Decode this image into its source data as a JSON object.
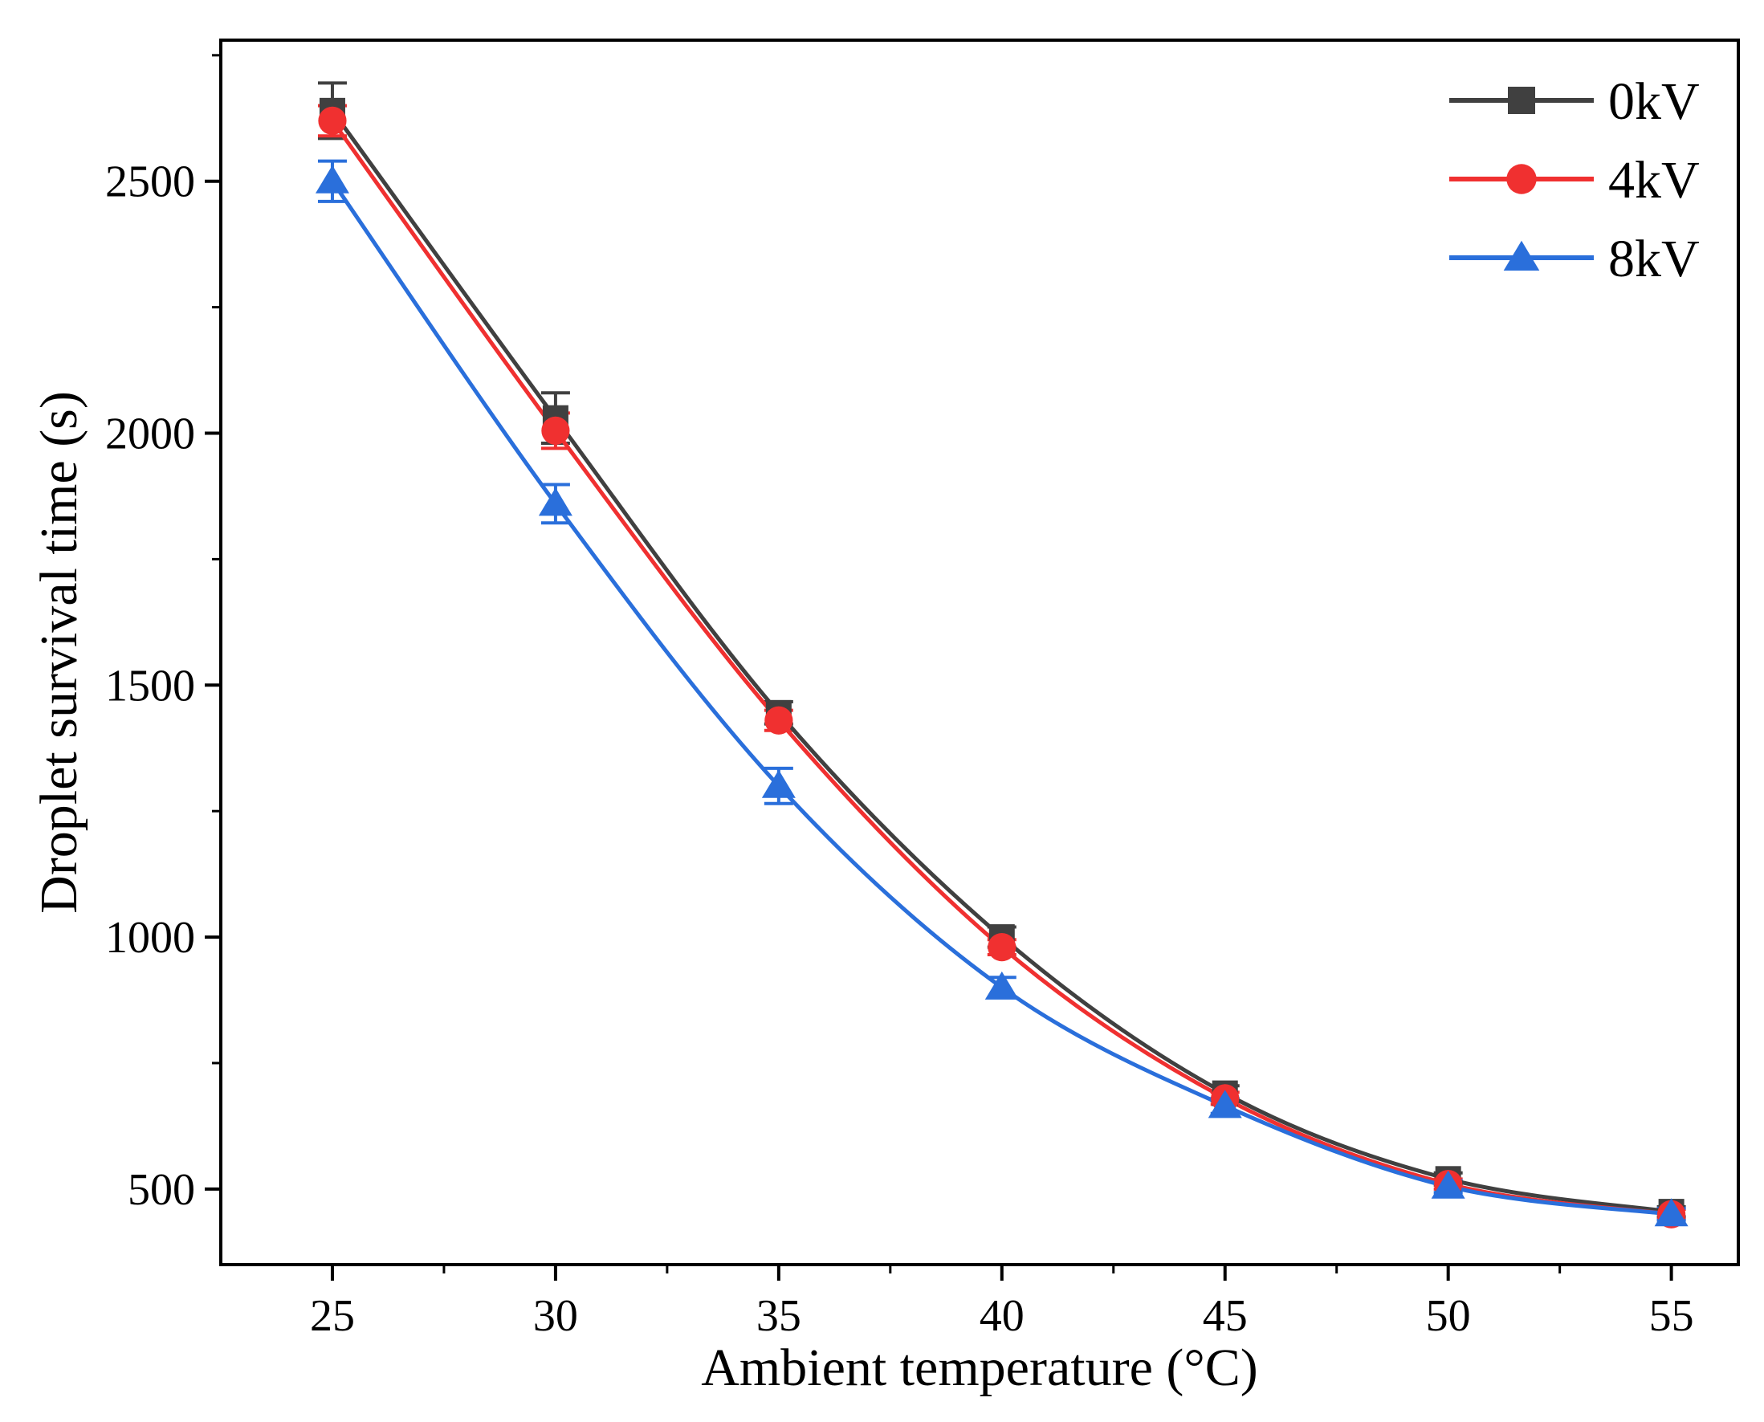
{
  "chart_data": {
    "type": "line",
    "title": "",
    "xlabel": "Ambient temperature (°C)",
    "ylabel": "Droplet survival time (s)",
    "xlim": [
      22.5,
      56.5
    ],
    "ylim": [
      350,
      2780
    ],
    "x": [
      25,
      30,
      35,
      40,
      45,
      50,
      55
    ],
    "x_ticks": [
      25,
      30,
      35,
      40,
      45,
      50,
      55
    ],
    "x_tick_labels": [
      "25",
      "30",
      "35",
      "40",
      "45",
      "50",
      "55"
    ],
    "y_ticks": [
      500,
      1000,
      1500,
      2000,
      2500
    ],
    "y_tick_labels": [
      "500",
      "1000",
      "1500",
      "2000",
      "2500"
    ],
    "legend_position": "top-right",
    "grid": false,
    "series": [
      {
        "name": "0kV",
        "color": "#404040",
        "marker": "square",
        "values": [
          2640,
          2030,
          1445,
          1000,
          690,
          520,
          455
        ],
        "errors": [
          55,
          50,
          22,
          20,
          15,
          12,
          10
        ]
      },
      {
        "name": "4kV",
        "color": "#f03030",
        "marker": "circle",
        "values": [
          2620,
          2005,
          1430,
          980,
          680,
          510,
          450
        ],
        "errors": [
          30,
          35,
          20,
          15,
          12,
          10,
          10
        ]
      },
      {
        "name": "8kV",
        "color": "#2a6fdb",
        "marker": "triangle",
        "values": [
          2500,
          1860,
          1300,
          900,
          665,
          505,
          450
        ],
        "errors": [
          40,
          38,
          35,
          20,
          15,
          12,
          12
        ]
      }
    ]
  }
}
